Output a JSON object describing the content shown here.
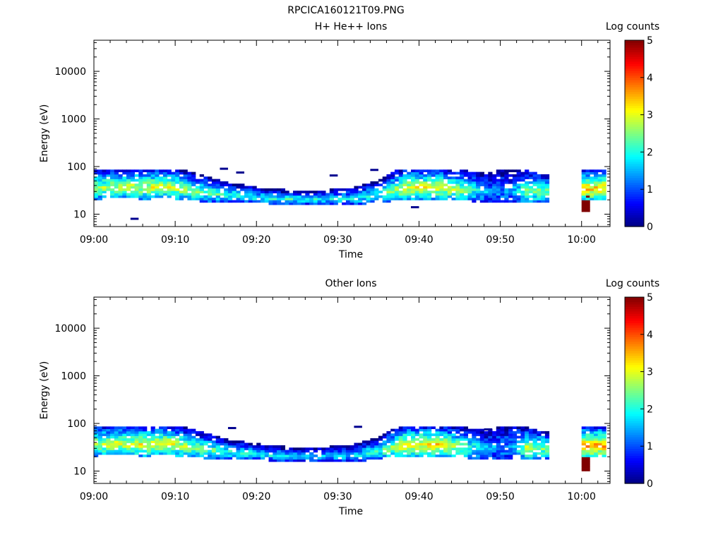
{
  "figure_title": "RPCICA160121T09.PNG",
  "colorbar": {
    "label": "Log counts",
    "ticks": [
      "0",
      "1",
      "2",
      "3",
      "4",
      "5"
    ],
    "min": 0,
    "max": 5
  },
  "chart_data": [
    {
      "type": "heatmap",
      "title": "H+ He++ Ions",
      "xlabel": "Time",
      "ylabel": "Energy (eV)",
      "x_ticks": [
        "09:00",
        "09:10",
        "09:20",
        "09:30",
        "09:40",
        "09:50",
        "10:00"
      ],
      "y_ticks": [
        "10",
        "100",
        "1000",
        "10000"
      ],
      "y_scale": "log",
      "ylim": [
        5.5,
        45000
      ],
      "xlim_minutes": [
        0,
        63.5
      ],
      "z_label": "Log counts",
      "zlim": [
        0,
        5
      ],
      "max_energy_eV": 95,
      "time_step_minutes": 0.5,
      "columns": [
        {
          "start": 0,
          "end": 56,
          "shape": "band",
          "lo": 22,
          "hi": 95,
          "peak": 3.0
        },
        {
          "start": 60,
          "end": 61,
          "shape": "block",
          "lo": 12,
          "hi": 27,
          "peak": 5.0
        },
        {
          "start": 60,
          "end": 63,
          "shape": "band",
          "lo": 20,
          "hi": 95,
          "peak": 3.4
        }
      ],
      "profile": [
        [
          0,
          22,
          95,
          2.6
        ],
        [
          3,
          23,
          95,
          2.8
        ],
        [
          6,
          22,
          95,
          2.9
        ],
        [
          9,
          23,
          95,
          3.0
        ],
        [
          12,
          20,
          70,
          2.5
        ],
        [
          16,
          19,
          45,
          2.2
        ],
        [
          20,
          18,
          35,
          2.0
        ],
        [
          24,
          17,
          30,
          2.1
        ],
        [
          28,
          17,
          30,
          1.9
        ],
        [
          32,
          17,
          35,
          1.9
        ],
        [
          35,
          19,
          50,
          2.2
        ],
        [
          38,
          21,
          95,
          3.0
        ],
        [
          42,
          22,
          95,
          3.1
        ],
        [
          45,
          20,
          80,
          2.6
        ],
        [
          48,
          19,
          70,
          1.5
        ],
        [
          51,
          18,
          90,
          1.3
        ],
        [
          53,
          18,
          85,
          2.6
        ],
        [
          56,
          20,
          60,
          2.4
        ]
      ],
      "isolated_points": [
        {
          "minute": 4.5,
          "energy": 8
        },
        {
          "minute": 15.5,
          "energy": 90
        },
        {
          "minute": 17.5,
          "energy": 75
        },
        {
          "minute": 29,
          "energy": 65
        },
        {
          "minute": 34,
          "energy": 85
        },
        {
          "minute": 39,
          "energy": 14
        }
      ]
    },
    {
      "type": "heatmap",
      "title": "Other Ions",
      "xlabel": "Time",
      "ylabel": "Energy (eV)",
      "x_ticks": [
        "09:00",
        "09:10",
        "09:20",
        "09:30",
        "09:40",
        "09:50",
        "10:00"
      ],
      "y_ticks": [
        "10",
        "100",
        "1000",
        "10000"
      ],
      "y_scale": "log",
      "ylim": [
        5.5,
        45000
      ],
      "xlim_minutes": [
        0,
        63.5
      ],
      "z_label": "Log counts",
      "zlim": [
        0,
        5
      ],
      "max_energy_eV": 95,
      "time_step_minutes": 0.5,
      "columns": [
        {
          "start": 0,
          "end": 56,
          "shape": "band",
          "lo": 22,
          "hi": 95,
          "peak": 3.2
        },
        {
          "start": 60,
          "end": 61,
          "shape": "block",
          "lo": 11,
          "hi": 27,
          "peak": 5.0
        },
        {
          "start": 60,
          "end": 63,
          "shape": "band",
          "lo": 20,
          "hi": 95,
          "peak": 3.6
        }
      ],
      "profile": [
        [
          0,
          22,
          95,
          2.8
        ],
        [
          3,
          23,
          95,
          3.0
        ],
        [
          6,
          22,
          95,
          3.0
        ],
        [
          9,
          23,
          95,
          3.1
        ],
        [
          12,
          20,
          70,
          2.6
        ],
        [
          16,
          19,
          45,
          2.2
        ],
        [
          20,
          18,
          35,
          2.0
        ],
        [
          24,
          17,
          30,
          1.8
        ],
        [
          28,
          17,
          30,
          1.7
        ],
        [
          32,
          17,
          35,
          1.8
        ],
        [
          35,
          19,
          50,
          2.3
        ],
        [
          38,
          21,
          95,
          3.2
        ],
        [
          42,
          22,
          95,
          3.3
        ],
        [
          45,
          20,
          80,
          2.6
        ],
        [
          48,
          19,
          70,
          1.5
        ],
        [
          51,
          18,
          90,
          1.4
        ],
        [
          53,
          18,
          85,
          2.8
        ],
        [
          56,
          20,
          60,
          2.5
        ]
      ],
      "isolated_points": [
        {
          "minute": 16.5,
          "energy": 80
        },
        {
          "minute": 32,
          "energy": 85
        },
        {
          "minute": 48,
          "energy": 75
        }
      ]
    }
  ]
}
